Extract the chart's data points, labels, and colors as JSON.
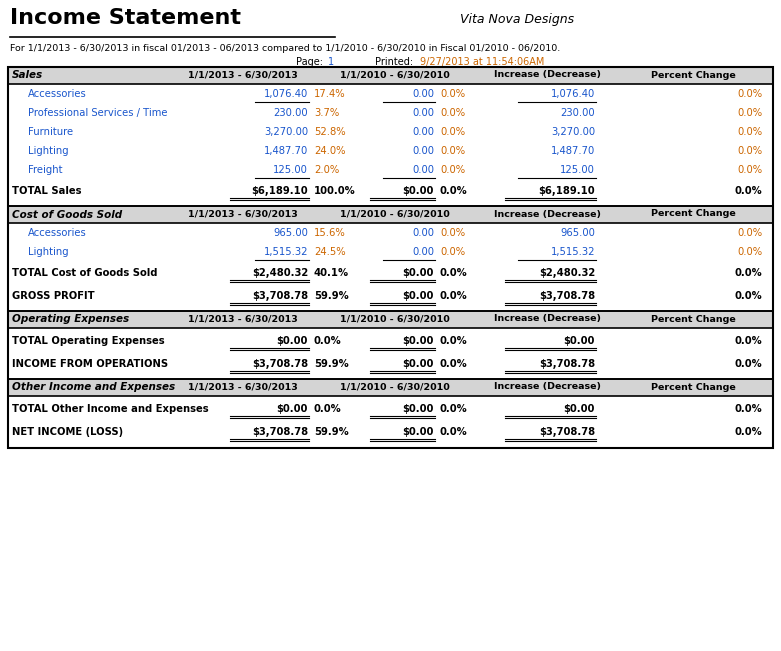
{
  "title": "Income Statement",
  "company": "Vita Nova Designs",
  "subtitle": "For 1/1/2013 - 6/30/2013 in fiscal 01/2013 - 06/2013 compared to 1/1/2010 - 6/30/2010 in Fiscal 01/2010 - 06/2010.",
  "col_headers": [
    "1/1/2013 - 6/30/2013",
    "1/1/2010 - 6/30/2010",
    "Increase (Decrease)",
    "Percent Change"
  ],
  "sections": [
    {
      "name": "Sales",
      "rows": [
        {
          "label": "Accessories",
          "v1": "1,076.40",
          "p1": "17.4%",
          "v2": "0.00",
          "p2": "0.0%",
          "v3": "1,076.40",
          "p3": "0.0%",
          "ul": true
        },
        {
          "label": "Professional Services / Time",
          "v1": "230.00",
          "p1": "3.7%",
          "v2": "0.00",
          "p2": "0.0%",
          "v3": "230.00",
          "p3": "0.0%",
          "ul": false
        },
        {
          "label": "Furniture",
          "v1": "3,270.00",
          "p1": "52.8%",
          "v2": "0.00",
          "p2": "0.0%",
          "v3": "3,270.00",
          "p3": "0.0%",
          "ul": false
        },
        {
          "label": "Lighting",
          "v1": "1,487.70",
          "p1": "24.0%",
          "v2": "0.00",
          "p2": "0.0%",
          "v3": "1,487.70",
          "p3": "0.0%",
          "ul": false
        },
        {
          "label": "Freight",
          "v1": "125.00",
          "p1": "2.0%",
          "v2": "0.00",
          "p2": "0.0%",
          "v3": "125.00",
          "p3": "0.0%",
          "ul": true
        }
      ],
      "total_label": "TOTAL Sales",
      "total_v1": "$6,189.10",
      "total_p1": "100.0%",
      "total_v2": "$0.00",
      "total_p2": "0.0%",
      "total_v3": "$6,189.10",
      "total_p3": "0.0%",
      "extra": null
    },
    {
      "name": "Cost of Goods Sold",
      "rows": [
        {
          "label": "Accessories",
          "v1": "965.00",
          "p1": "15.6%",
          "v2": "0.00",
          "p2": "0.0%",
          "v3": "965.00",
          "p3": "0.0%",
          "ul": false
        },
        {
          "label": "Lighting",
          "v1": "1,515.32",
          "p1": "24.5%",
          "v2": "0.00",
          "p2": "0.0%",
          "v3": "1,515.32",
          "p3": "0.0%",
          "ul": true
        }
      ],
      "total_label": "TOTAL Cost of Goods Sold",
      "total_v1": "$2,480.32",
      "total_p1": "40.1%",
      "total_v2": "$0.00",
      "total_p2": "0.0%",
      "total_v3": "$2,480.32",
      "total_p3": "0.0%",
      "extra": {
        "label": "GROSS PROFIT",
        "v1": "$3,708.78",
        "p1": "59.9%",
        "v2": "$0.00",
        "p2": "0.0%",
        "v3": "$3,708.78",
        "p3": "0.0%"
      }
    },
    {
      "name": "Operating Expenses",
      "rows": [],
      "total_label": "TOTAL Operating Expenses",
      "total_v1": "$0.00",
      "total_p1": "0.0%",
      "total_v2": "$0.00",
      "total_p2": "0.0%",
      "total_v3": "$0.00",
      "total_p3": "0.0%",
      "extra": {
        "label": "INCOME FROM OPERATIONS",
        "v1": "$3,708.78",
        "p1": "59.9%",
        "v2": "$0.00",
        "p2": "0.0%",
        "v3": "$3,708.78",
        "p3": "0.0%"
      }
    },
    {
      "name": "Other Income and Expenses",
      "rows": [],
      "total_label": "TOTAL Other Income and Expenses",
      "total_v1": "$0.00",
      "total_p1": "0.0%",
      "total_v2": "$0.00",
      "total_p2": "0.0%",
      "total_v3": "$0.00",
      "total_p3": "0.0%",
      "extra": {
        "label": "NET INCOME (LOSS)",
        "v1": "$3,708.78",
        "p1": "59.9%",
        "v2": "$0.00",
        "p2": "0.0%",
        "v3": "$3,708.78",
        "p3": "0.0%"
      }
    }
  ],
  "bg_color": "#ffffff",
  "black": "#000000",
  "blue": "#1a56cc",
  "orange": "#cc6600",
  "header_gray": "#d4d4d4"
}
